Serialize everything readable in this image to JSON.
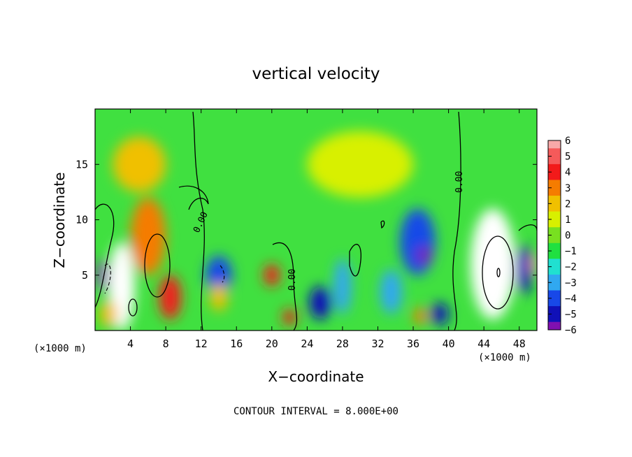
{
  "chart_data": {
    "type": "heatmap",
    "title": "vertical velocity",
    "xlabel": "X−coordinate",
    "ylabel": "Z−coordinate",
    "x_unit": "(×1000 m)",
    "footer": "CONTOUR INTERVAL = 8.000E+00",
    "xlim": [
      0,
      50
    ],
    "ylim": [
      0,
      20
    ],
    "x_ticks": [
      4,
      8,
      12,
      16,
      20,
      24,
      28,
      32,
      36,
      40,
      44,
      48
    ],
    "x_tick_labels": [
      "4",
      "8",
      "12",
      "16",
      "20",
      "24",
      "28",
      "32",
      "36",
      "40",
      "44",
      "48"
    ],
    "y_ticks": [
      5,
      10,
      15
    ],
    "y_tick_labels": [
      "5",
      "10",
      "15"
    ],
    "colorbar": {
      "values": [
        6,
        5,
        4,
        3,
        2,
        1,
        0,
        -1,
        -2,
        -3,
        -4,
        -5,
        -6
      ],
      "labels": [
        "6",
        "5",
        "4",
        "3",
        "2",
        "1",
        "0",
        "−1",
        "−2",
        "−3",
        "−4",
        "−5",
        "−6"
      ],
      "colors": [
        "#f7a8a8",
        "#f55a5a",
        "#f21a1a",
        "#f57c00",
        "#f0c000",
        "#d8f000",
        "#78e020",
        "#20e040",
        "#20e0d0",
        "#30a8f0",
        "#1848e8",
        "#1010b8",
        "#8010b0"
      ]
    },
    "contour_labels": [
      "0.00",
      "0.00",
      "0.00",
      "0.00"
    ],
    "cells": [
      {
        "x": 3.0,
        "z": 4.0,
        "w": 3.0,
        "h": 8.0,
        "v": 6.5
      },
      {
        "x": 1.5,
        "z": 1.5,
        "w": 2.0,
        "h": 2.5,
        "v": 2.0
      },
      {
        "x": 6.0,
        "z": 8.5,
        "w": 4.0,
        "h": 7.0,
        "v": 3.0
      },
      {
        "x": 8.5,
        "z": 3.0,
        "w": 2.5,
        "h": 4.0,
        "v": 4.0
      },
      {
        "x": 0.8,
        "z": 5.0,
        "w": 1.2,
        "h": 3.0,
        "v": -6.0
      },
      {
        "x": 14.0,
        "z": 5.0,
        "w": 3.0,
        "h": 3.5,
        "v": -4.0
      },
      {
        "x": 14.0,
        "z": 3.0,
        "w": 2.0,
        "h": 2.5,
        "v": 2.0
      },
      {
        "x": 20.0,
        "z": 5.0,
        "w": 1.8,
        "h": 2.0,
        "v": 4.0
      },
      {
        "x": 22.0,
        "z": 1.2,
        "w": 1.5,
        "h": 1.5,
        "v": 4.0
      },
      {
        "x": 25.5,
        "z": 2.5,
        "w": 2.5,
        "h": 3.0,
        "v": -5.0
      },
      {
        "x": 28.0,
        "z": 4.0,
        "w": 2.0,
        "h": 5.0,
        "v": -3.5
      },
      {
        "x": 33.5,
        "z": 3.5,
        "w": 2.5,
        "h": 4.0,
        "v": -3.0
      },
      {
        "x": 36.5,
        "z": 8.0,
        "w": 4.0,
        "h": 6.0,
        "v": -4.5
      },
      {
        "x": 37.2,
        "z": 6.8,
        "w": 1.5,
        "h": 1.5,
        "v": -6.0
      },
      {
        "x": 36.8,
        "z": 1.3,
        "w": 1.5,
        "h": 1.5,
        "v": 3.0
      },
      {
        "x": 39.0,
        "z": 1.5,
        "w": 2.0,
        "h": 2.0,
        "v": -5.0
      },
      {
        "x": 30.0,
        "z": 15.0,
        "w": 12.0,
        "h": 6.0,
        "v": 0.5
      },
      {
        "x": 45.0,
        "z": 6.0,
        "w": 5.0,
        "h": 10.0,
        "v": 6.5
      },
      {
        "x": 48.5,
        "z": 5.5,
        "w": 1.8,
        "h": 4.5,
        "v": -5.0
      },
      {
        "x": 49.6,
        "z": 6.0,
        "w": 0.8,
        "h": 2.0,
        "v": 6.0
      },
      {
        "x": 5.0,
        "z": 15.0,
        "w": 6.0,
        "h": 5.0,
        "v": 1.5
      }
    ]
  }
}
